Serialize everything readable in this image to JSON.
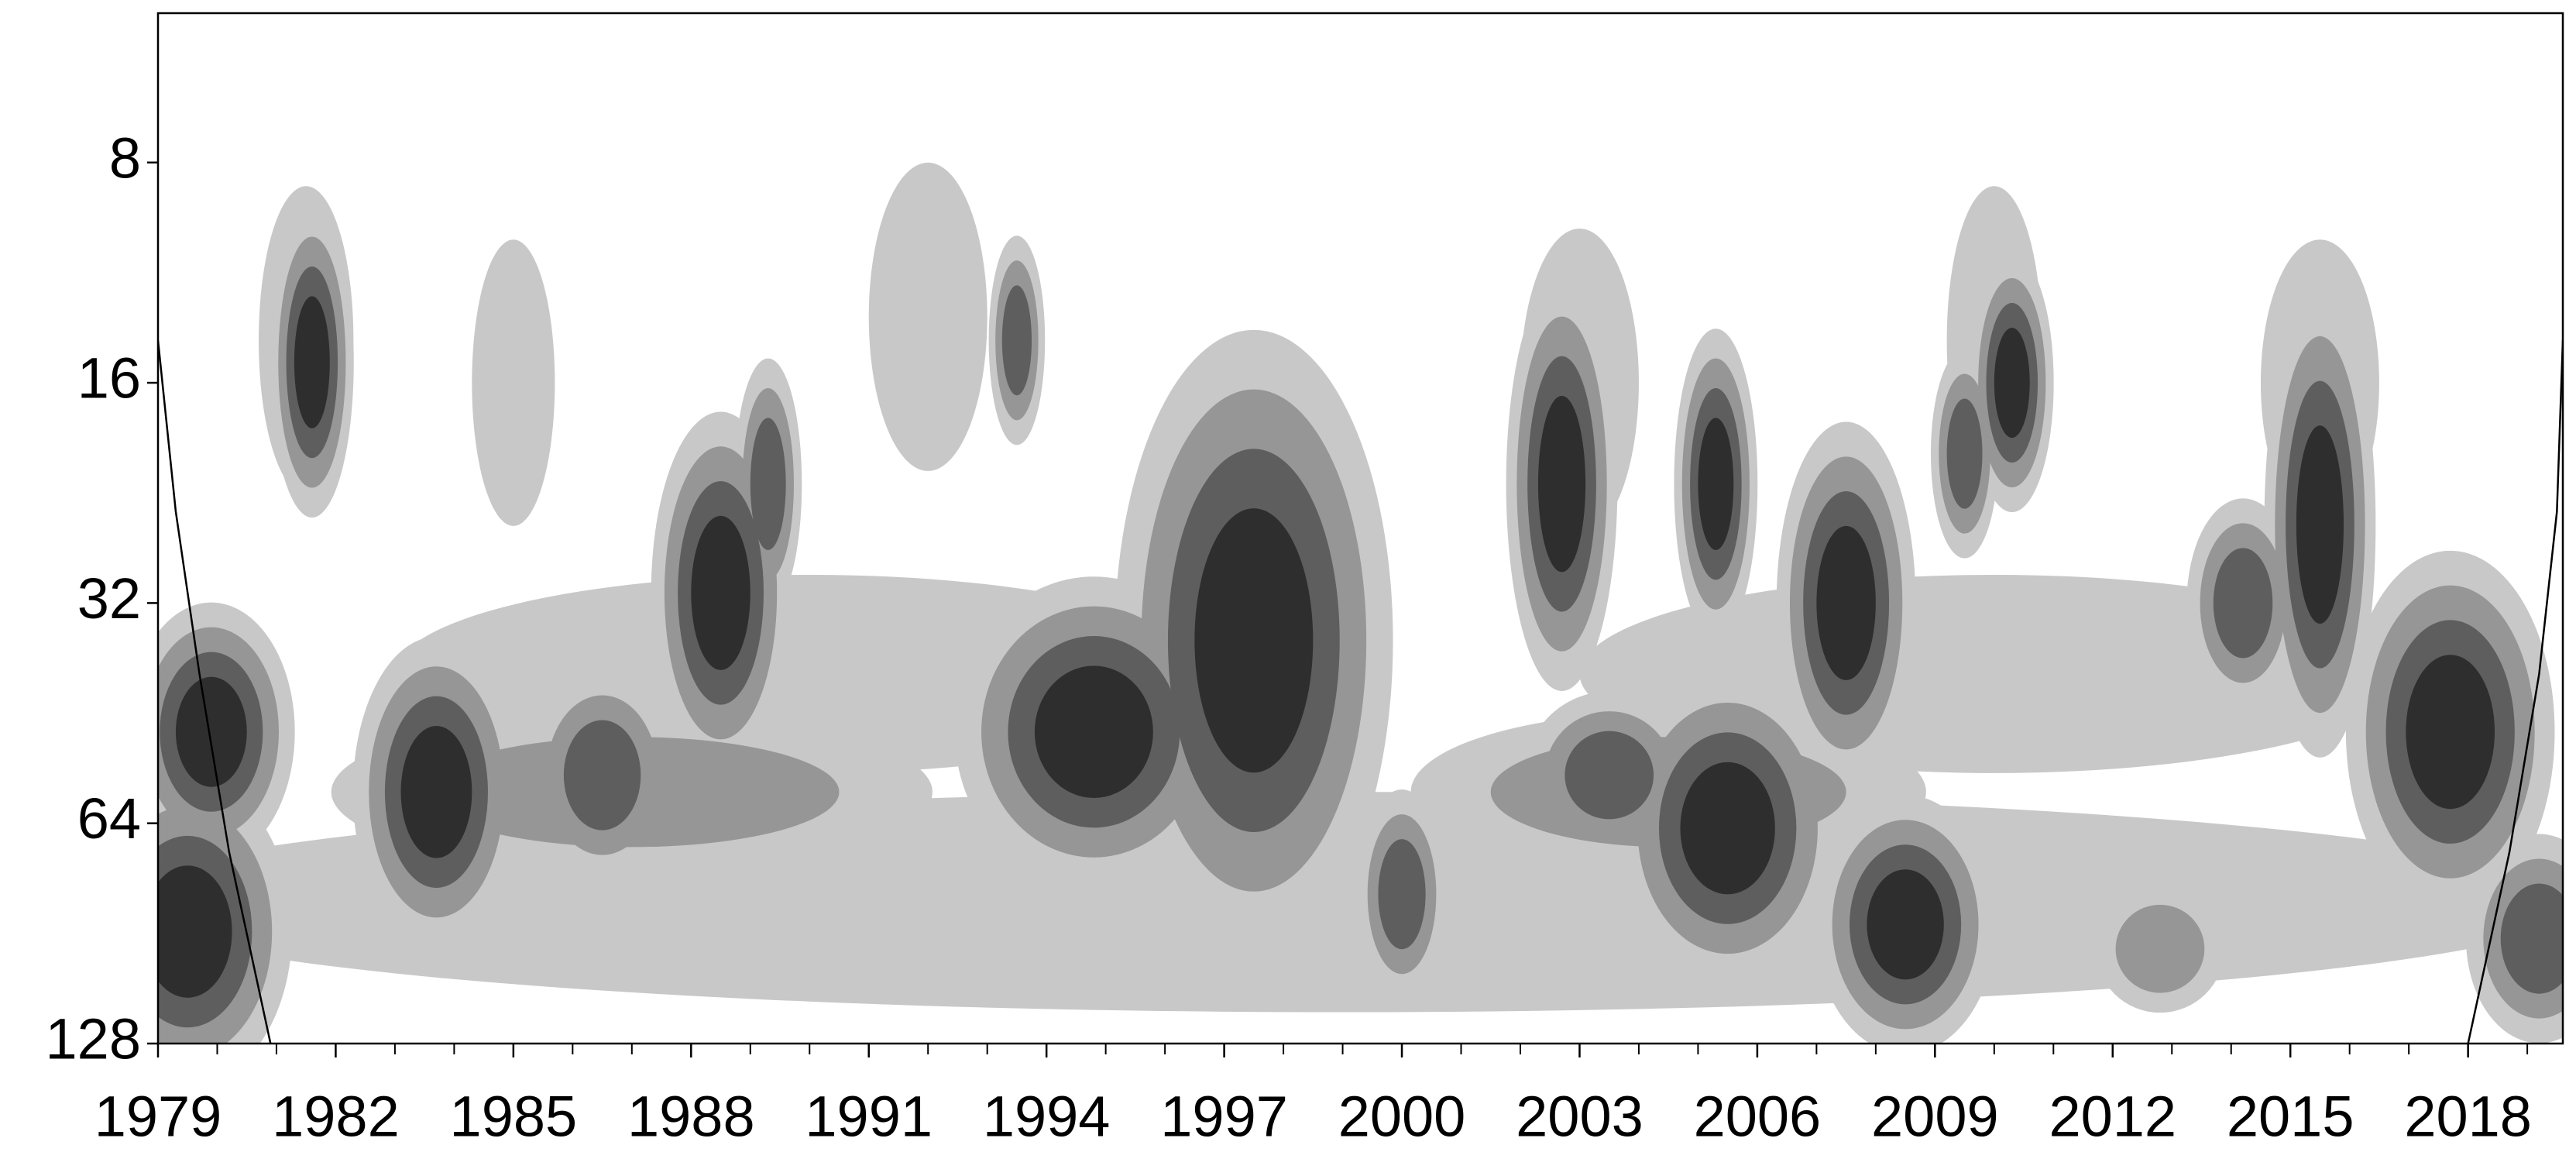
{
  "chart_data": {
    "type": "contour",
    "xlim": [
      1979,
      2019.6
    ],
    "xticks": [
      1979,
      1982,
      1985,
      1988,
      1991,
      1994,
      1997,
      2000,
      2003,
      2006,
      2009,
      2012,
      2015,
      2018
    ],
    "xminor": [
      1980,
      1981,
      1983,
      1984,
      1986,
      1987,
      1989,
      1990,
      1992,
      1993,
      1995,
      1996,
      1998,
      1999,
      2001,
      2002,
      2004,
      2005,
      2007,
      2008,
      2010,
      2011,
      2013,
      2014,
      2016,
      2017,
      2019
    ],
    "ylim": [
      5,
      128
    ],
    "yticks": [
      8,
      16,
      32,
      64,
      128
    ],
    "ylog": true,
    "yinverted": true,
    "level_colors": [
      "#ffffff",
      "#c8c8c8",
      "#969696",
      "#5e5e5e",
      "#2e2e2e"
    ],
    "blobs": [
      {
        "year": 1999,
        "period": 82,
        "width": 42,
        "height": 1.0,
        "level": 1
      },
      {
        "year": 1990,
        "period": 40,
        "width": 14,
        "height": 0.9,
        "level": 1
      },
      {
        "year": 2010,
        "period": 40,
        "width": 14,
        "height": 0.9,
        "level": 1
      },
      {
        "year": 1981.5,
        "period": 14,
        "width": 1.6,
        "height": 1.4,
        "level": 1
      },
      {
        "year": 1985,
        "period": 16,
        "width": 1.4,
        "height": 1.3,
        "level": 1
      },
      {
        "year": 1992,
        "period": 13,
        "width": 2.0,
        "height": 1.4,
        "level": 1
      },
      {
        "year": 2003,
        "period": 16,
        "width": 2.0,
        "height": 1.4,
        "level": 1
      },
      {
        "year": 2010,
        "period": 14,
        "width": 1.6,
        "height": 1.4,
        "level": 1
      },
      {
        "year": 2015.5,
        "period": 16,
        "width": 2.0,
        "height": 1.3,
        "level": 1
      },
      {
        "year": 1987,
        "period": 58,
        "width": 7,
        "height": 0.5,
        "level": 2
      },
      {
        "year": 2004.5,
        "period": 58,
        "width": 6,
        "height": 0.5,
        "level": 2
      },
      {
        "year": 1979.5,
        "period": 90,
        "width": 1.5,
        "height": 0.6,
        "level": 4
      },
      {
        "year": 1979.9,
        "period": 48,
        "width": 1.2,
        "height": 0.5,
        "level": 4
      },
      {
        "year": 1981.6,
        "period": 15,
        "width": 0.6,
        "height": 0.6,
        "level": 4
      },
      {
        "year": 1983.7,
        "period": 58,
        "width": 1.2,
        "height": 0.6,
        "level": 4
      },
      {
        "year": 1986.5,
        "period": 55,
        "width": 1.3,
        "height": 0.5,
        "level": 3
      },
      {
        "year": 1988.5,
        "period": 31,
        "width": 1.0,
        "height": 0.7,
        "level": 4
      },
      {
        "year": 1989.3,
        "period": 22,
        "width": 0.6,
        "height": 0.6,
        "level": 3
      },
      {
        "year": 1993.5,
        "period": 14,
        "width": 0.5,
        "height": 0.5,
        "level": 3
      },
      {
        "year": 1994.8,
        "period": 48,
        "width": 2.0,
        "height": 0.6,
        "level": 4
      },
      {
        "year": 1997.5,
        "period": 36,
        "width": 2.0,
        "height": 1.2,
        "level": 4
      },
      {
        "year": 2000.0,
        "period": 80,
        "width": 0.8,
        "height": 0.5,
        "level": 3
      },
      {
        "year": 2002.7,
        "period": 22,
        "width": 0.8,
        "height": 0.8,
        "level": 4
      },
      {
        "year": 2003.5,
        "period": 55,
        "width": 1.5,
        "height": 0.4,
        "level": 3
      },
      {
        "year": 2005.5,
        "period": 65,
        "width": 1.6,
        "height": 0.6,
        "level": 4
      },
      {
        "year": 2005.3,
        "period": 22,
        "width": 0.6,
        "height": 0.6,
        "level": 4
      },
      {
        "year": 2007.5,
        "period": 32,
        "width": 1.0,
        "height": 0.7,
        "level": 4
      },
      {
        "year": 2008.5,
        "period": 88,
        "width": 1.3,
        "height": 0.5,
        "level": 4
      },
      {
        "year": 2010.3,
        "period": 16,
        "width": 0.6,
        "height": 0.5,
        "level": 4
      },
      {
        "year": 2009.5,
        "period": 20,
        "width": 0.6,
        "height": 0.5,
        "level": 3
      },
      {
        "year": 2012.8,
        "period": 95,
        "width": 1.5,
        "height": 0.4,
        "level": 2
      },
      {
        "year": 2014.2,
        "period": 32,
        "width": 1.0,
        "height": 0.5,
        "level": 3
      },
      {
        "year": 2015.5,
        "period": 25,
        "width": 0.8,
        "height": 0.9,
        "level": 4
      },
      {
        "year": 2017.7,
        "period": 48,
        "width": 1.5,
        "height": 0.7,
        "level": 4
      },
      {
        "year": 2019.2,
        "period": 92,
        "width": 1.3,
        "height": 0.5,
        "level": 3
      }
    ],
    "coi": [
      {
        "x": [
          1979,
          1979.3,
          1979.7,
          1980.2,
          1980.9
        ],
        "y": [
          14,
          24,
          40,
          70,
          128
        ]
      },
      {
        "x": [
          2018,
          2018.7,
          2019.2,
          2019.5,
          2019.6
        ],
        "y": [
          128,
          70,
          40,
          24,
          14
        ]
      }
    ]
  }
}
